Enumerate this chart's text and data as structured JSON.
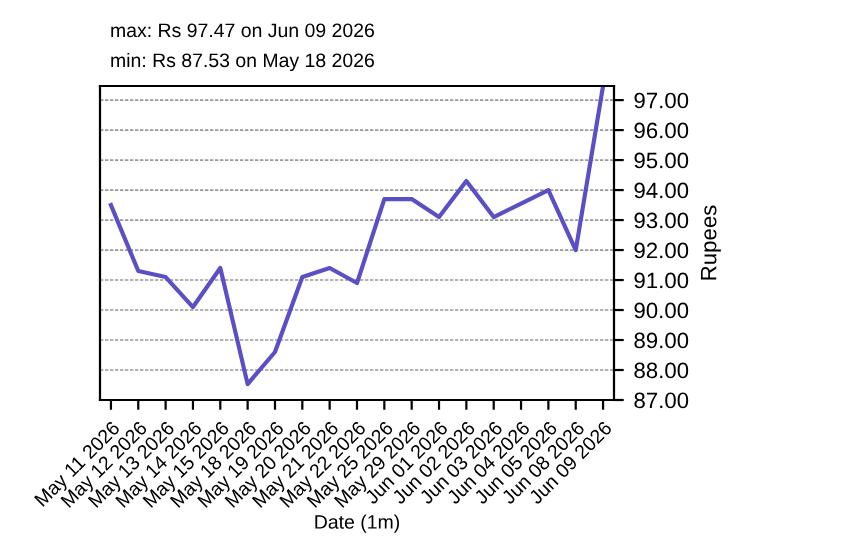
{
  "chart_data": {
    "type": "line",
    "xlabel": "Date (1m)",
    "ylabel": "Rupees",
    "annotations": [
      "max: Rs 97.47 on Jun 09 2026",
      "min: Rs 87.53 on May 18 2026"
    ],
    "categories": [
      "May 11 2026",
      "May 12 2026",
      "May 13 2026",
      "May 14 2026",
      "May 15 2026",
      "May 18 2026",
      "May 19 2026",
      "May 20 2026",
      "May 21 2026",
      "May 22 2026",
      "May 25 2026",
      "May 29 2026",
      "Jun 01 2026",
      "Jun 02 2026",
      "Jun 03 2026",
      "Jun 04 2026",
      "Jun 05 2026",
      "Jun 08 2026",
      "Jun 09 2026"
    ],
    "series": [
      {
        "color": "#5b4fc6",
        "values": [
          93.5,
          91.3,
          91.1,
          90.1,
          91.4,
          87.53,
          88.6,
          91.1,
          91.4,
          90.9,
          93.7,
          93.7,
          93.1,
          94.3,
          93.1,
          93.55,
          94.0,
          92.0,
          97.47
        ]
      }
    ],
    "ylim": [
      87,
      97.47
    ],
    "yticks": [
      {
        "value": 87,
        "label": "87.00"
      },
      {
        "value": 88,
        "label": "88.00"
      },
      {
        "value": 89,
        "label": "89.00"
      },
      {
        "value": 90,
        "label": "90.00"
      },
      {
        "value": 91,
        "label": "91.00"
      },
      {
        "value": 92,
        "label": "92.00"
      },
      {
        "value": 93,
        "label": "93.00"
      },
      {
        "value": 94,
        "label": "94.00"
      },
      {
        "value": 95,
        "label": "95.00"
      },
      {
        "value": 96,
        "label": "96.00"
      },
      {
        "value": 97,
        "label": "97.00"
      }
    ],
    "grid": "y",
    "marker": "none",
    "line_style": "solid"
  }
}
